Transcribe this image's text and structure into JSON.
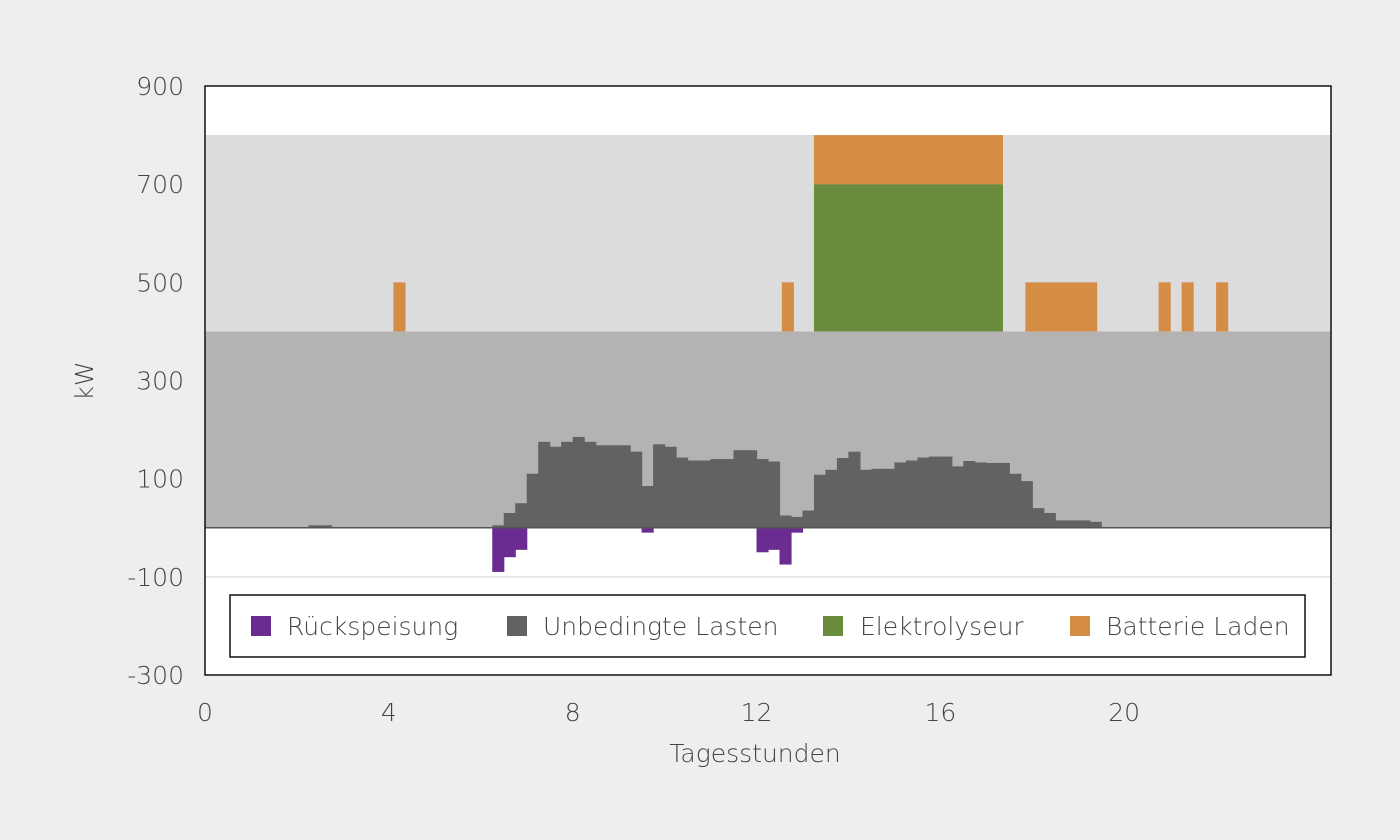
{
  "chart_data": {
    "type": "bar",
    "xlabel": "Tagesstunden",
    "ylabel": "kW",
    "xlim": [
      0,
      24.5
    ],
    "ylim": [
      -300,
      900
    ],
    "y_tick_labels": [
      "900",
      "700",
      "500",
      "300",
      "100",
      "-100",
      "-300"
    ],
    "y_tick_values": [
      900,
      700,
      500,
      300,
      100,
      -100,
      -300
    ],
    "x_tick_labels": [
      "0",
      "4",
      "8",
      "12",
      "16",
      "20"
    ],
    "x_tick_values": [
      0,
      4,
      8,
      12,
      16,
      20
    ],
    "bands": [
      {
        "from": 0,
        "to": 400,
        "color": "#b4b3b2"
      },
      {
        "from": 400,
        "to": 800,
        "color": "#dcdcdc"
      }
    ],
    "legend": {
      "placement": "bottom-inside",
      "entries": [
        {
          "name": "Rückspeisung",
          "color": "#6a2c91"
        },
        {
          "name": "Unbedingte Lasten",
          "color": "#626262"
        },
        {
          "name": "Elektrolyseur",
          "color": "#6b8c3e"
        },
        {
          "name": "Batterie Laden",
          "color": "#d58c45"
        }
      ]
    },
    "interval_hours": 0.25,
    "series": [
      {
        "name": "Unbedingte Lasten",
        "color": "#626262",
        "start_hour": 2.25,
        "values": [
          5,
          5,
          0,
          0,
          0,
          0,
          0,
          0,
          0,
          0,
          0,
          0,
          0,
          0,
          0,
          0,
          5,
          30,
          50,
          110,
          175,
          165,
          175,
          185,
          175,
          168,
          168,
          168,
          155,
          85,
          170,
          165,
          143,
          137,
          137,
          140,
          140,
          158,
          158,
          140,
          135,
          25,
          22,
          35,
          108,
          118,
          142,
          155,
          118,
          120,
          120,
          133,
          137,
          143,
          145,
          145,
          125,
          136,
          133,
          132,
          132,
          110,
          95,
          40,
          30,
          15,
          15,
          15,
          12
        ]
      },
      {
        "name": "Rückspeisung",
        "color": "#6a2c91",
        "start_hour": 6.0,
        "values": [
          0,
          -90,
          -60,
          -45,
          0,
          0,
          0,
          0,
          0,
          0,
          0,
          0,
          0,
          0,
          -10,
          0,
          0,
          0,
          0,
          0,
          0,
          0,
          0,
          0,
          -50,
          -45,
          -75,
          -10
        ]
      },
      {
        "name": "Elektrolyseur",
        "color": "#6b8c3e",
        "segments": [
          {
            "start": 13.25,
            "end": 17.35,
            "from": 400,
            "to": 700
          }
        ]
      },
      {
        "name": "Batterie Laden",
        "color": "#d58c45",
        "segments": [
          {
            "start": 4.1,
            "end": 4.35,
            "from": 400,
            "to": 500
          },
          {
            "start": 12.55,
            "end": 12.8,
            "from": 400,
            "to": 500
          },
          {
            "start": 13.25,
            "end": 17.35,
            "from": 700,
            "to": 800
          },
          {
            "start": 17.85,
            "end": 19.4,
            "from": 400,
            "to": 500
          },
          {
            "start": 20.75,
            "end": 21.0,
            "from": 400,
            "to": 500
          },
          {
            "start": 21.25,
            "end": 21.5,
            "from": 400,
            "to": 500
          },
          {
            "start": 22.0,
            "end": 22.25,
            "from": 400,
            "to": 500
          }
        ]
      }
    ]
  }
}
